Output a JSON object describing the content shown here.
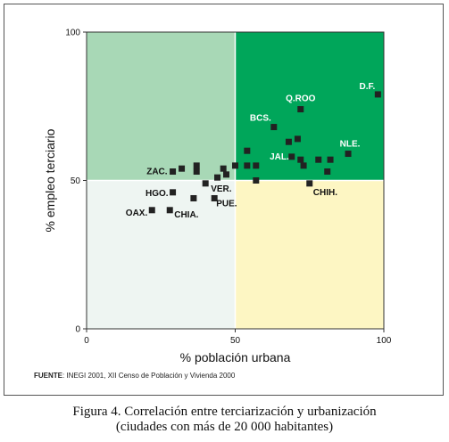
{
  "chart_data": {
    "type": "scatter",
    "xlabel": "% población urbana",
    "ylabel": "% empleo terciario",
    "xlim": [
      0,
      100
    ],
    "ylim": [
      0,
      100
    ],
    "x_ticks": [
      "0",
      "50",
      "100"
    ],
    "y_ticks": [
      "0",
      "50",
      "100"
    ],
    "grid": false,
    "quadrants": [
      {
        "name": "low-x-low-y",
        "color": "#eef5f2"
      },
      {
        "name": "low-x-high-y",
        "color": "#a8d8b6"
      },
      {
        "name": "high-x-high-y",
        "color": "#00a65a"
      },
      {
        "name": "high-x-low-y",
        "color": "#fdf6c3"
      }
    ],
    "marker_color": "#222222",
    "points": [
      {
        "x": 98,
        "y": 79,
        "label": "D.F."
      },
      {
        "x": 72,
        "y": 74,
        "label": "Q.ROO"
      },
      {
        "x": 63,
        "y": 68,
        "label": "BCS."
      },
      {
        "x": 68,
        "y": 63,
        "label": ""
      },
      {
        "x": 71,
        "y": 64,
        "label": ""
      },
      {
        "x": 54,
        "y": 60,
        "label": ""
      },
      {
        "x": 69,
        "y": 58,
        "label": "JAL."
      },
      {
        "x": 72,
        "y": 57,
        "label": ""
      },
      {
        "x": 88,
        "y": 59,
        "label": "NLE."
      },
      {
        "x": 78,
        "y": 57,
        "label": ""
      },
      {
        "x": 82,
        "y": 57,
        "label": ""
      },
      {
        "x": 73,
        "y": 55,
        "label": ""
      },
      {
        "x": 81,
        "y": 53,
        "label": ""
      },
      {
        "x": 57,
        "y": 55,
        "label": ""
      },
      {
        "x": 54,
        "y": 55,
        "label": ""
      },
      {
        "x": 50,
        "y": 55,
        "label": ""
      },
      {
        "x": 46,
        "y": 54,
        "label": ""
      },
      {
        "x": 47,
        "y": 52,
        "label": ""
      },
      {
        "x": 44,
        "y": 51,
        "label": ""
      },
      {
        "x": 37,
        "y": 55,
        "label": ""
      },
      {
        "x": 37,
        "y": 53,
        "label": ""
      },
      {
        "x": 32,
        "y": 54,
        "label": ""
      },
      {
        "x": 29,
        "y": 53,
        "label": "ZAC."
      },
      {
        "x": 57,
        "y": 50,
        "label": ""
      },
      {
        "x": 75,
        "y": 49,
        "label": "CHIH."
      },
      {
        "x": 40,
        "y": 49,
        "label": "VER."
      },
      {
        "x": 29,
        "y": 46,
        "label": "HGO."
      },
      {
        "x": 36,
        "y": 44,
        "label": ""
      },
      {
        "x": 43,
        "y": 44,
        "label": "PUE."
      },
      {
        "x": 22,
        "y": 40,
        "label": "OAX."
      },
      {
        "x": 28,
        "y": 40,
        "label": "CHIA."
      }
    ]
  },
  "source": {
    "label": "FUENTE",
    "text": ": INEGI 2001, XII Censo de Población y Vivienda 2000"
  },
  "caption": {
    "line1": "Figura 4. Correlación entre terciarización y urbanización",
    "line2": "(ciudades con más de 20 000 habitantes)"
  }
}
